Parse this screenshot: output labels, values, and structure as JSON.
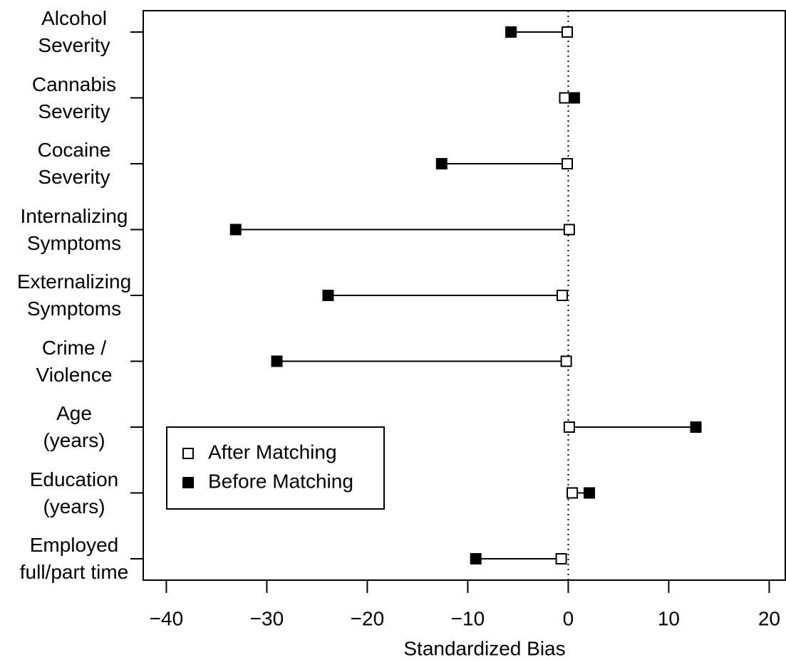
{
  "chart_data": {
    "type": "dotplot",
    "categories": [
      "Alcohol\nSeverity",
      "Cannabis\nSeverity",
      "Cocaine\nSeverity",
      "Internalizing\nSymptoms",
      "Externalizing\nSymptoms",
      "Crime /\nViolence",
      "Age\n(years)",
      "Education\n(years)",
      "Employed\nfull/part time"
    ],
    "series": [
      {
        "name": "After Matching",
        "color": "#000000",
        "marker": "open-square",
        "values": [
          -0.1,
          -0.35,
          -0.1,
          0.1,
          -0.6,
          -0.2,
          0.1,
          0.4,
          -0.7
        ]
      },
      {
        "name": "Before Matching",
        "color": "#000000",
        "marker": "filled-square",
        "values": [
          -5.7,
          0.6,
          -12.6,
          -33.1,
          -23.9,
          -29.0,
          12.7,
          2.1,
          -9.2
        ]
      }
    ],
    "x_label": "Standardized Bias",
    "xlim": [
      -42.3,
      21.6
    ],
    "xticks": [
      {
        "value": -40,
        "label": "−40"
      },
      {
        "value": -30,
        "label": "−30"
      },
      {
        "value": -20,
        "label": "−20"
      },
      {
        "value": -10,
        "label": "−10"
      },
      0,
      10,
      20
    ],
    "reference_line": 0,
    "legend_position": "lower left"
  }
}
